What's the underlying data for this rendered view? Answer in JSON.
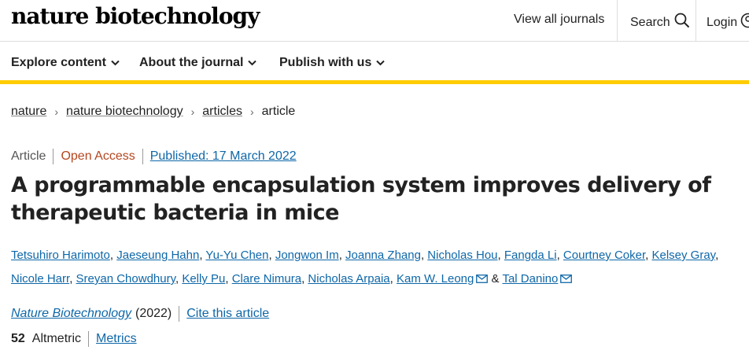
{
  "header": {
    "logo": "nature biotechnology",
    "view_journals": "View all journals",
    "search_label": "Search",
    "login_label": "Login"
  },
  "nav": {
    "items": [
      {
        "label": "Explore content"
      },
      {
        "label": "About the journal"
      },
      {
        "label": "Publish with us"
      }
    ],
    "accent_color": "#ffcc00"
  },
  "breadcrumb": [
    "nature",
    "nature biotechnology",
    "articles",
    "article"
  ],
  "article": {
    "type": "Article",
    "access": "Open Access",
    "published": "Published: 17 March 2022",
    "title": "A programmable encapsulation system improves delivery of therapeutic bacteria in mice",
    "authors": [
      "Tetsuhiro Harimoto",
      "Jaeseung Hahn",
      "Yu-Yu Chen",
      "Jongwon Im",
      "Joanna Zhang",
      "Nicholas Hou",
      "Fangda Li",
      "Courtney Coker",
      "Kelsey Gray",
      "Nicole Harr",
      "Sreyan Chowdhury",
      "Kelly Pu",
      "Clare Nimura",
      "Nicholas Arpaia",
      "Kam W. Leong",
      "Tal Danino"
    ],
    "author_conj": "&",
    "journal": "Nature Biotechnology",
    "year": "(2022)",
    "cite_label": "Cite this article",
    "altmetric_count": "52",
    "altmetric_label": "Altmetric",
    "metrics_label": "Metrics"
  },
  "colors": {
    "link": "#0e67a8",
    "open_access": "#b5461f"
  }
}
